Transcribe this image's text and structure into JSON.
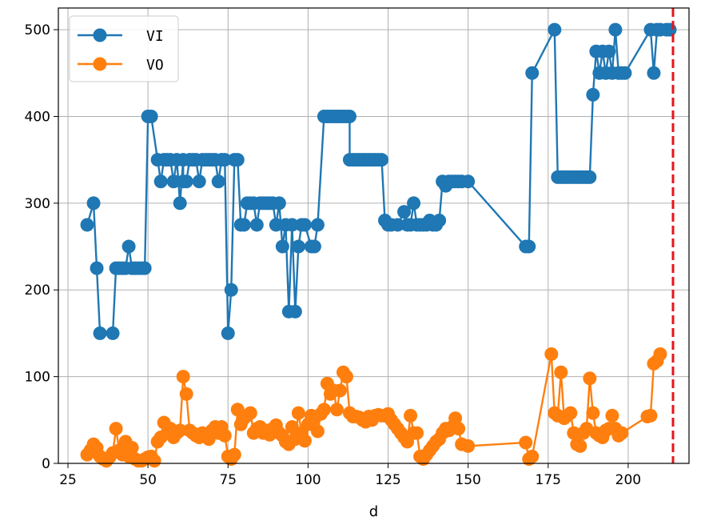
{
  "chart_data": {
    "type": "line",
    "xlabel": "d",
    "ylabel": "",
    "xlim": [
      22,
      219
    ],
    "ylim": [
      0,
      525
    ],
    "x_ticks": [
      25,
      50,
      75,
      100,
      125,
      150,
      175,
      200
    ],
    "y_ticks": [
      0,
      100,
      200,
      300,
      400,
      500
    ],
    "grid": true,
    "legend_position": "upper-left",
    "vline": {
      "x": 214,
      "color": "#e8141a",
      "style": "dashed"
    },
    "series": [
      {
        "name": "VI",
        "color": "#1f77b4",
        "points": [
          [
            31,
            275
          ],
          [
            33,
            300
          ],
          [
            34,
            225
          ],
          [
            35,
            150
          ],
          [
            39,
            150
          ],
          [
            40,
            225
          ],
          [
            41,
            225
          ],
          [
            42,
            225
          ],
          [
            43,
            225
          ],
          [
            44,
            250
          ],
          [
            45,
            225
          ],
          [
            46,
            225
          ],
          [
            47,
            225
          ],
          [
            48,
            225
          ],
          [
            49,
            225
          ],
          [
            50,
            400
          ],
          [
            51,
            400
          ],
          [
            53,
            350
          ],
          [
            54,
            325
          ],
          [
            55,
            350
          ],
          [
            56,
            350
          ],
          [
            57,
            350
          ],
          [
            58,
            325
          ],
          [
            59,
            350
          ],
          [
            60,
            300
          ],
          [
            61,
            350
          ],
          [
            61,
            325
          ],
          [
            62,
            325
          ],
          [
            63,
            350
          ],
          [
            64,
            350
          ],
          [
            65,
            350
          ],
          [
            66,
            325
          ],
          [
            67,
            350
          ],
          [
            68,
            350
          ],
          [
            69,
            350
          ],
          [
            70,
            350
          ],
          [
            71,
            350
          ],
          [
            72,
            325
          ],
          [
            73,
            350
          ],
          [
            74,
            350
          ],
          [
            75,
            150
          ],
          [
            76,
            200
          ],
          [
            77,
            350
          ],
          [
            78,
            350
          ],
          [
            79,
            275
          ],
          [
            80,
            275
          ],
          [
            81,
            300
          ],
          [
            82,
            300
          ],
          [
            83,
            300
          ],
          [
            84,
            275
          ],
          [
            85,
            300
          ],
          [
            86,
            300
          ],
          [
            87,
            300
          ],
          [
            88,
            300
          ],
          [
            89,
            300
          ],
          [
            90,
            275
          ],
          [
            91,
            300
          ],
          [
            92,
            250
          ],
          [
            93,
            275
          ],
          [
            94,
            175
          ],
          [
            95,
            275
          ],
          [
            96,
            175
          ],
          [
            97,
            250
          ],
          [
            98,
            275
          ],
          [
            99,
            275
          ],
          [
            101,
            250
          ],
          [
            102,
            250
          ],
          [
            103,
            275
          ],
          [
            105,
            400
          ],
          [
            106,
            400
          ],
          [
            107,
            400
          ],
          [
            108,
            400
          ],
          [
            109,
            400
          ],
          [
            110,
            400
          ],
          [
            111,
            400
          ],
          [
            112,
            400
          ],
          [
            113,
            400
          ],
          [
            113,
            350
          ],
          [
            114,
            350
          ],
          [
            115,
            350
          ],
          [
            116,
            350
          ],
          [
            117,
            350
          ],
          [
            118,
            350
          ],
          [
            119,
            350
          ],
          [
            120,
            350
          ],
          [
            121,
            350
          ],
          [
            122,
            350
          ],
          [
            123,
            350
          ],
          [
            124,
            280
          ],
          [
            125,
            275
          ],
          [
            126,
            275
          ],
          [
            128,
            275
          ],
          [
            130,
            290
          ],
          [
            131,
            275
          ],
          [
            132,
            275
          ],
          [
            133,
            300
          ],
          [
            134,
            275
          ],
          [
            135,
            275
          ],
          [
            136,
            275
          ],
          [
            137,
            275
          ],
          [
            138,
            280
          ],
          [
            139,
            275
          ],
          [
            140,
            275
          ],
          [
            141,
            280
          ],
          [
            142,
            325
          ],
          [
            143,
            320
          ],
          [
            144,
            325
          ],
          [
            145,
            325
          ],
          [
            146,
            325
          ],
          [
            147,
            325
          ],
          [
            148,
            325
          ],
          [
            150,
            325
          ],
          [
            168,
            250
          ],
          [
            169,
            250
          ],
          [
            170,
            450
          ],
          [
            177,
            500
          ],
          [
            178,
            330
          ],
          [
            179,
            330
          ],
          [
            180,
            330
          ],
          [
            181,
            330
          ],
          [
            182,
            330
          ],
          [
            183,
            330
          ],
          [
            184,
            330
          ],
          [
            185,
            330
          ],
          [
            186,
            330
          ],
          [
            187,
            330
          ],
          [
            188,
            330
          ],
          [
            189,
            425
          ],
          [
            190,
            475
          ],
          [
            191,
            450
          ],
          [
            192,
            475
          ],
          [
            193,
            450
          ],
          [
            194,
            475
          ],
          [
            195,
            450
          ],
          [
            196,
            500
          ],
          [
            197,
            450
          ],
          [
            198,
            450
          ],
          [
            199,
            450
          ],
          [
            207,
            500
          ],
          [
            208,
            450
          ],
          [
            209,
            500
          ],
          [
            210,
            500
          ],
          [
            212,
            500
          ],
          [
            213,
            500
          ]
        ]
      },
      {
        "name": "VO",
        "color": "#ff7f0e",
        "points": [
          [
            31,
            10
          ],
          [
            32,
            15
          ],
          [
            33,
            22
          ],
          [
            34,
            18
          ],
          [
            35,
            8
          ],
          [
            36,
            5
          ],
          [
            37,
            3
          ],
          [
            38,
            7
          ],
          [
            39,
            12
          ],
          [
            40,
            40
          ],
          [
            41,
            15
          ],
          [
            42,
            10
          ],
          [
            43,
            25
          ],
          [
            44,
            8
          ],
          [
            45,
            18
          ],
          [
            46,
            5
          ],
          [
            47,
            3
          ],
          [
            48,
            3
          ],
          [
            49,
            5
          ],
          [
            50,
            7
          ],
          [
            51,
            8
          ],
          [
            52,
            3
          ],
          [
            53,
            25
          ],
          [
            54,
            30
          ],
          [
            55,
            47
          ],
          [
            56,
            35
          ],
          [
            57,
            40
          ],
          [
            58,
            30
          ],
          [
            59,
            35
          ],
          [
            60,
            38
          ],
          [
            61,
            100
          ],
          [
            62,
            80
          ],
          [
            63,
            38
          ],
          [
            64,
            35
          ],
          [
            65,
            32
          ],
          [
            66,
            30
          ],
          [
            67,
            35
          ],
          [
            68,
            32
          ],
          [
            69,
            28
          ],
          [
            70,
            38
          ],
          [
            71,
            42
          ],
          [
            72,
            35
          ],
          [
            73,
            42
          ],
          [
            74,
            32
          ],
          [
            75,
            8
          ],
          [
            76,
            5
          ],
          [
            77,
            10
          ],
          [
            78,
            62
          ],
          [
            79,
            45
          ],
          [
            80,
            52
          ],
          [
            81,
            55
          ],
          [
            82,
            58
          ],
          [
            83,
            35
          ],
          [
            84,
            40
          ],
          [
            85,
            42
          ],
          [
            86,
            35
          ],
          [
            87,
            38
          ],
          [
            88,
            33
          ],
          [
            89,
            40
          ],
          [
            90,
            44
          ],
          [
            91,
            35
          ],
          [
            92,
            32
          ],
          [
            93,
            25
          ],
          [
            94,
            22
          ],
          [
            95,
            42
          ],
          [
            96,
            28
          ],
          [
            97,
            58
          ],
          [
            98,
            35
          ],
          [
            99,
            26
          ],
          [
            100,
            45
          ],
          [
            101,
            55
          ],
          [
            102,
            52
          ],
          [
            103,
            37
          ],
          [
            104,
            57
          ],
          [
            105,
            62
          ],
          [
            106,
            92
          ],
          [
            107,
            80
          ],
          [
            108,
            84
          ],
          [
            109,
            62
          ],
          [
            110,
            84
          ],
          [
            111,
            105
          ],
          [
            112,
            100
          ],
          [
            113,
            58
          ],
          [
            114,
            54
          ],
          [
            115,
            54
          ],
          [
            116,
            53
          ],
          [
            117,
            50
          ],
          [
            118,
            48
          ],
          [
            119,
            54
          ],
          [
            120,
            50
          ],
          [
            121,
            55
          ],
          [
            122,
            56
          ],
          [
            123,
            55
          ],
          [
            124,
            55
          ],
          [
            125,
            57
          ],
          [
            126,
            50
          ],
          [
            127,
            45
          ],
          [
            128,
            40
          ],
          [
            129,
            35
          ],
          [
            130,
            30
          ],
          [
            131,
            25
          ],
          [
            132,
            55
          ],
          [
            133,
            35
          ],
          [
            134,
            35
          ],
          [
            135,
            8
          ],
          [
            136,
            5
          ],
          [
            137,
            10
          ],
          [
            138,
            15
          ],
          [
            139,
            20
          ],
          [
            140,
            25
          ],
          [
            141,
            28
          ],
          [
            142,
            35
          ],
          [
            143,
            40
          ],
          [
            144,
            38
          ],
          [
            145,
            42
          ],
          [
            146,
            52
          ],
          [
            147,
            40
          ],
          [
            148,
            22
          ],
          [
            150,
            20
          ],
          [
            168,
            24
          ],
          [
            169,
            5
          ],
          [
            170,
            8
          ],
          [
            176,
            126
          ],
          [
            177,
            58
          ],
          [
            178,
            55
          ],
          [
            179,
            105
          ],
          [
            180,
            52
          ],
          [
            181,
            55
          ],
          [
            182,
            58
          ],
          [
            183,
            35
          ],
          [
            184,
            22
          ],
          [
            185,
            20
          ],
          [
            186,
            35
          ],
          [
            187,
            40
          ],
          [
            188,
            98
          ],
          [
            189,
            58
          ],
          [
            190,
            35
          ],
          [
            191,
            32
          ],
          [
            192,
            30
          ],
          [
            193,
            38
          ],
          [
            194,
            40
          ],
          [
            195,
            55
          ],
          [
            196,
            40
          ],
          [
            197,
            32
          ],
          [
            198,
            35
          ],
          [
            206,
            54
          ],
          [
            207,
            55
          ],
          [
            208,
            115
          ],
          [
            209,
            118
          ],
          [
            210,
            126
          ]
        ]
      }
    ]
  }
}
